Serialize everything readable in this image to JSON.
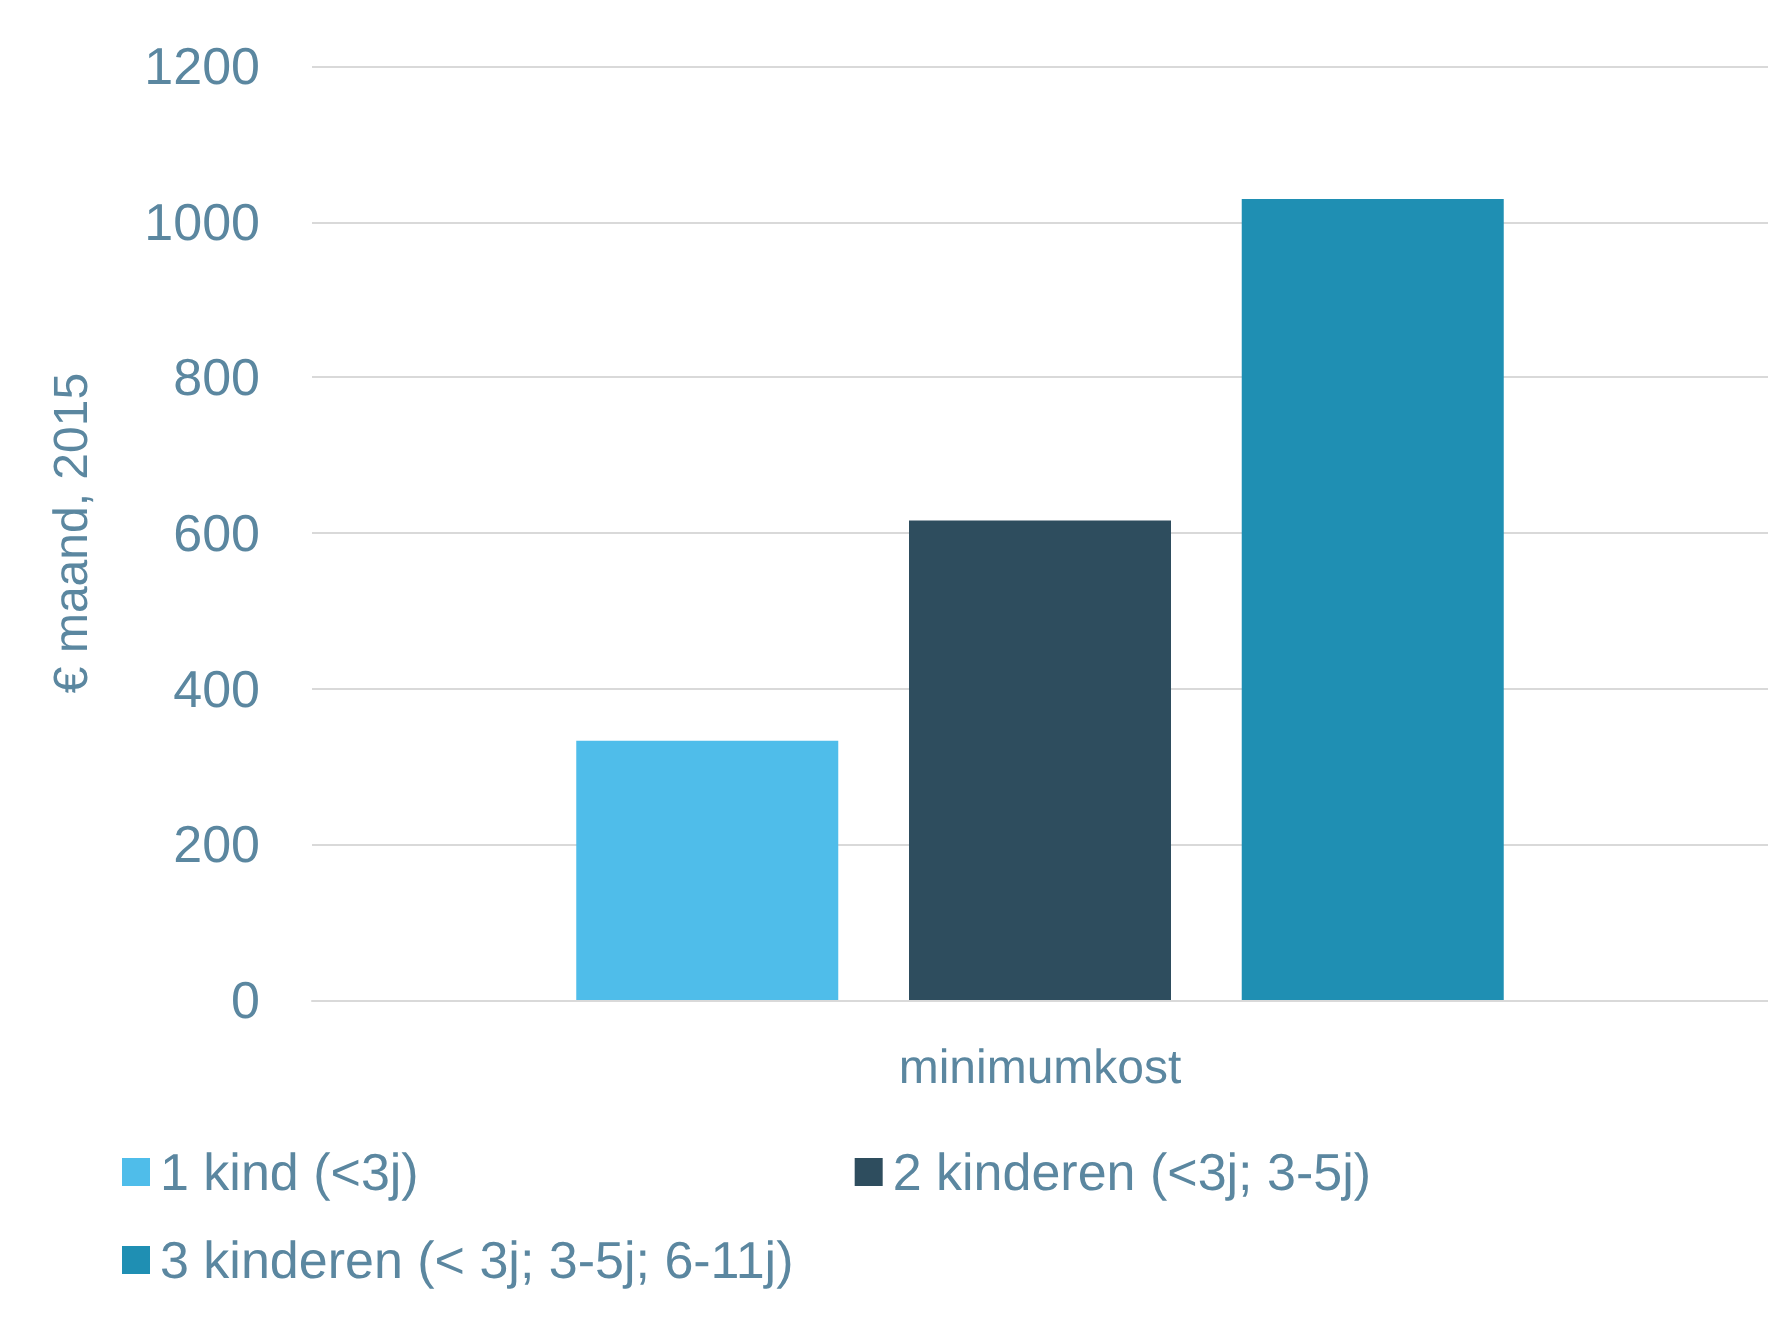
{
  "chart_data": {
    "type": "bar",
    "ylabel": "€ maand, 2015",
    "categories": [
      "minimumkost"
    ],
    "series": [
      {
        "name": "1 kind (<3j)",
        "color": "#4fbdea",
        "values": [
          333
        ]
      },
      {
        "name": "2 kinderen (<3j; 3-5j)",
        "color": "#2e4d5e",
        "values": [
          616
        ]
      },
      {
        "name": "3 kinderen (< 3j; 3-5j; 6-11j)",
        "color": "#1f8fb3",
        "values": [
          1029
        ]
      }
    ],
    "ylim": [
      0,
      1200
    ],
    "yticks": [
      0,
      200,
      400,
      600,
      800,
      1000,
      1200
    ],
    "grid": "y",
    "legend": "bottom"
  }
}
